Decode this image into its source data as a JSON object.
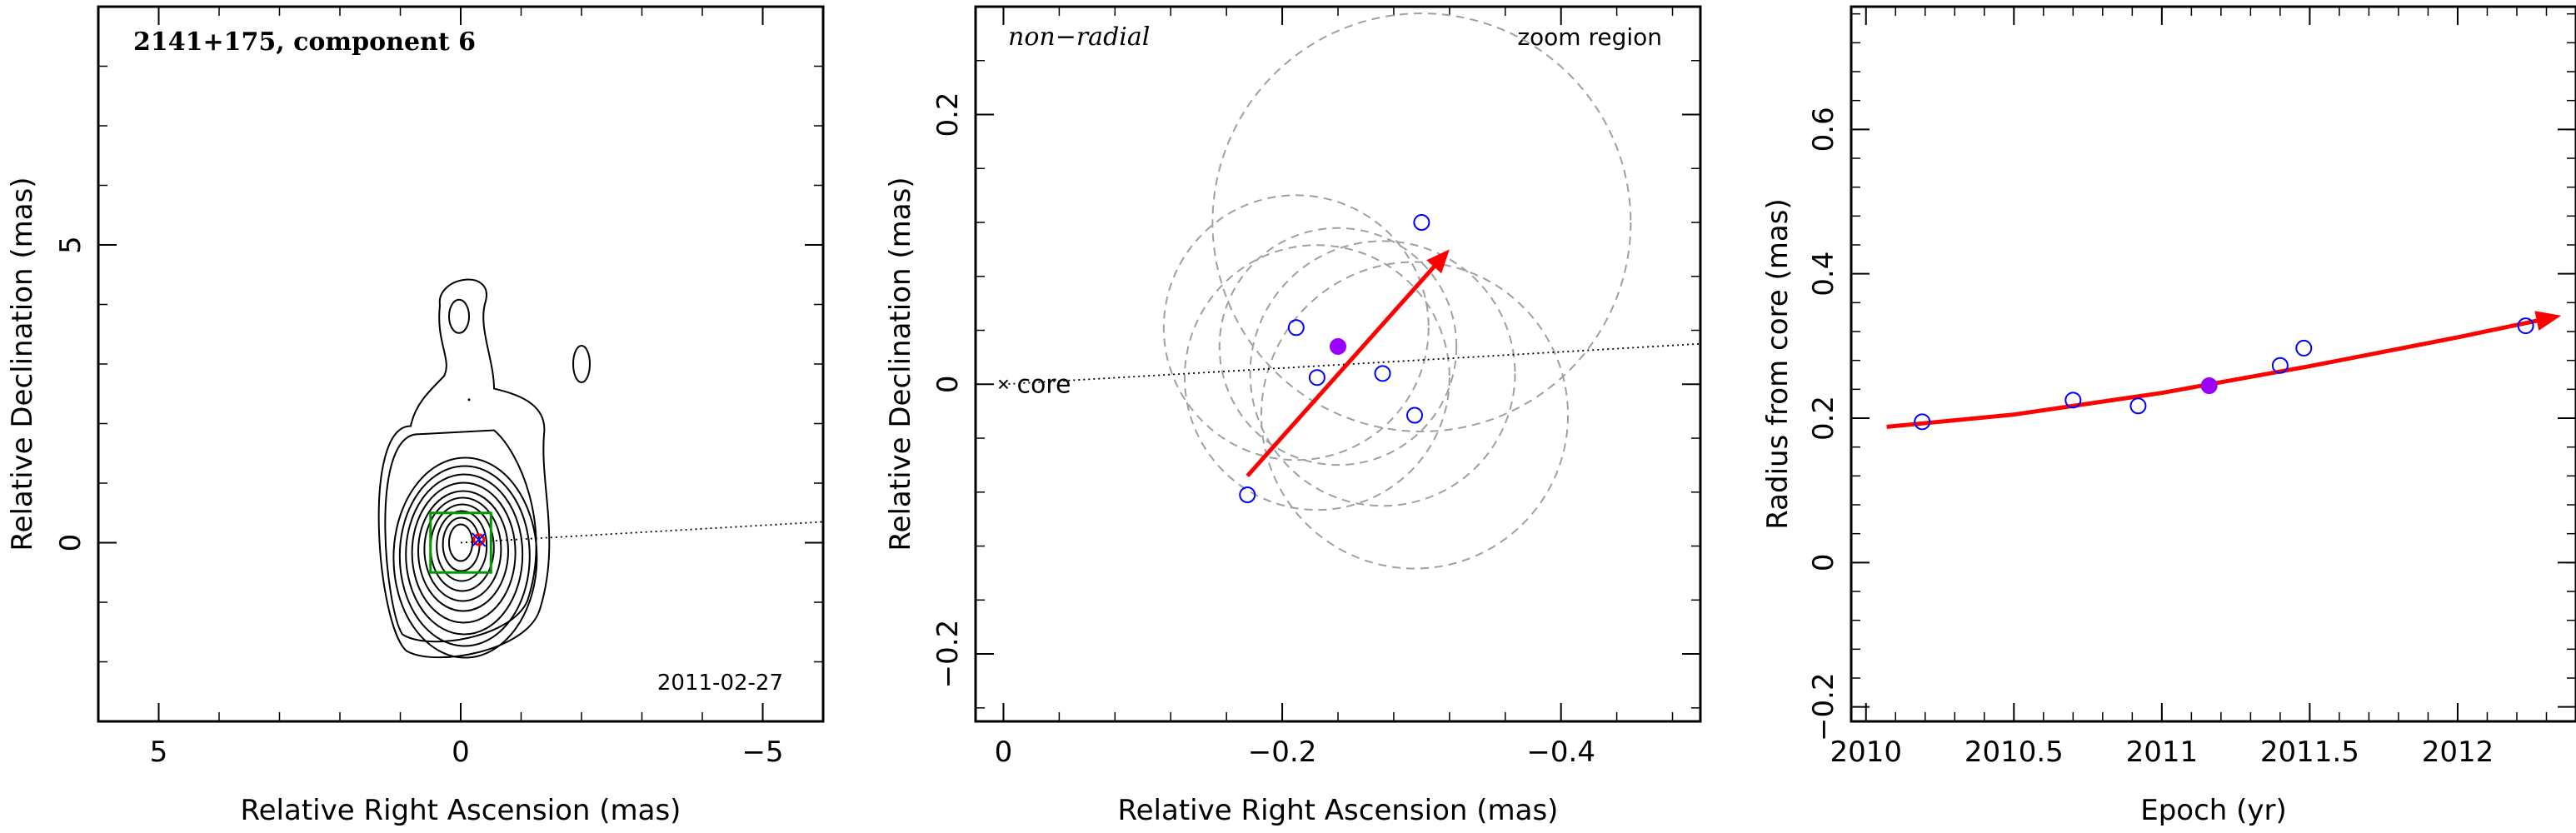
{
  "chart_data": [
    {
      "type": "contour",
      "title": "2141+175, component 6",
      "annotation": "2011-02-27",
      "xlabel": "Relative Right Ascension (mas)",
      "ylabel": "Relative Declination (mas)",
      "xlim": [
        6,
        -6
      ],
      "ylim": [
        -3,
        9
      ],
      "xticks": [
        5,
        0,
        -5
      ],
      "yticks": [
        0,
        5
      ],
      "core_line": {
        "from": [
          0.0,
          0.0
        ],
        "to": [
          -6.0,
          0.35
        ]
      },
      "zoom_box": {
        "x": [
          0.5,
          -0.5
        ],
        "y": [
          -0.5,
          0.5
        ],
        "color": "#009900"
      },
      "component_marker": {
        "x": -0.3,
        "y": 0.05,
        "color": "#ff0000"
      },
      "contour_centers": {
        "x": 0.0,
        "y": 0.0
      }
    },
    {
      "type": "scatter",
      "title": "non−radial",
      "annotation": "zoom region",
      "core_label": "core",
      "xlabel": "Relative Right Ascension (mas)",
      "ylabel": "Relative Declination (mas)",
      "xlim": [
        0.02,
        -0.5
      ],
      "ylim": [
        -0.25,
        0.28
      ],
      "xticks": [
        0,
        -0.2,
        -0.4
      ],
      "yticks": [
        -0.2,
        0,
        0.2
      ],
      "points": [
        {
          "x": -0.175,
          "y": -0.082
        },
        {
          "x": -0.21,
          "y": 0.042
        },
        {
          "x": -0.225,
          "y": 0.005
        },
        {
          "x": -0.272,
          "y": 0.008
        },
        {
          "x": -0.295,
          "y": -0.023
        },
        {
          "x": -0.3,
          "y": 0.12
        }
      ],
      "highlight_point": {
        "x": -0.24,
        "y": 0.028,
        "color": "#9900ff"
      },
      "circles": [
        {
          "x": -0.3,
          "y": 0.12,
          "r": 0.15
        },
        {
          "x": -0.21,
          "y": 0.042,
          "r": 0.095
        },
        {
          "x": -0.225,
          "y": 0.005,
          "r": 0.095
        },
        {
          "x": -0.272,
          "y": 0.008,
          "r": 0.095
        },
        {
          "x": -0.295,
          "y": -0.023,
          "r": 0.11
        },
        {
          "x": -0.24,
          "y": 0.028,
          "r": 0.085
        }
      ],
      "arrow": {
        "from": [
          -0.175,
          -0.068
        ],
        "to": [
          -0.32,
          0.1
        ],
        "color": "#ff0000"
      },
      "core_line": {
        "from": [
          0.0,
          0.0
        ],
        "to": [
          -0.5,
          0.03
        ]
      }
    },
    {
      "type": "line",
      "xlabel": "Epoch (yr)",
      "ylabel": "Radius from core (mas)",
      "xlim": [
        2009.95,
        2012.4
      ],
      "ylim": [
        -0.22,
        0.77
      ],
      "xticks": [
        2010,
        2010.5,
        2011,
        2011.5,
        2012
      ],
      "xtick_labels": [
        "2010",
        "2010.5",
        "2011",
        "2011.5",
        "2012"
      ],
      "yticks": [
        -0.2,
        0,
        0.2,
        0.4,
        0.6
      ],
      "points": [
        {
          "x": 2010.19,
          "y": 0.195
        },
        {
          "x": 2010.7,
          "y": 0.225
        },
        {
          "x": 2010.92,
          "y": 0.217
        },
        {
          "x": 2011.4,
          "y": 0.273
        },
        {
          "x": 2011.48,
          "y": 0.297
        },
        {
          "x": 2012.23,
          "y": 0.328
        }
      ],
      "highlight_point": {
        "x": 2011.16,
        "y": 0.245,
        "color": "#9900ff"
      },
      "fit": [
        {
          "x": 2010.07,
          "y": 0.188
        },
        {
          "x": 2010.5,
          "y": 0.205
        },
        {
          "x": 2011.0,
          "y": 0.235
        },
        {
          "x": 2011.5,
          "y": 0.272
        },
        {
          "x": 2012.0,
          "y": 0.312
        },
        {
          "x": 2012.35,
          "y": 0.342
        }
      ],
      "fit_color": "#ff0000"
    }
  ],
  "colors": {
    "points": "#0000ff",
    "grey_circles": "#a0a0a0"
  }
}
